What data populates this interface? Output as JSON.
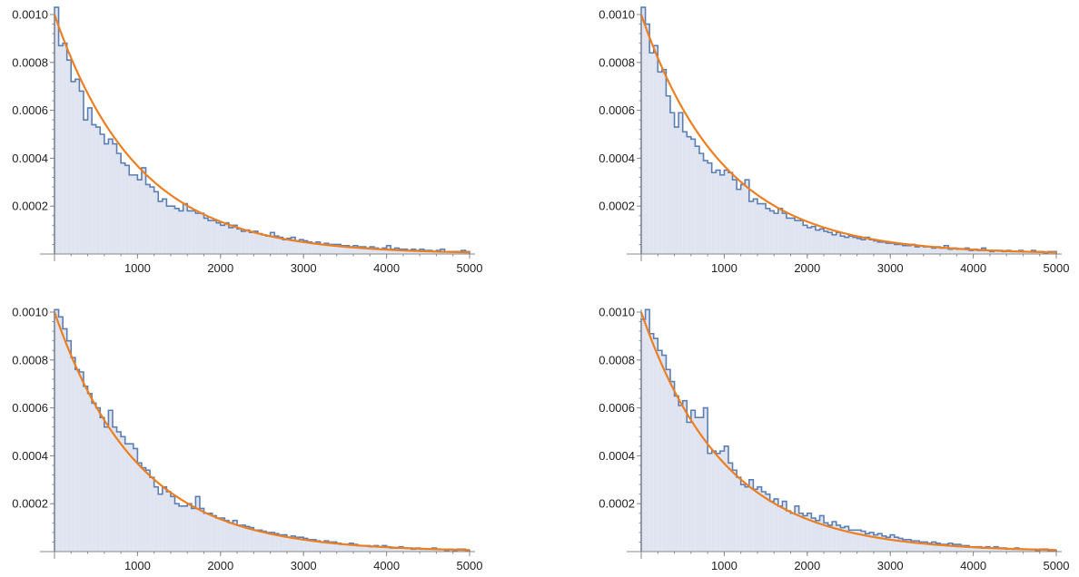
{
  "colors": {
    "histogram_fill": "#dfe4f0",
    "histogram_stroke": "#5b7fb5",
    "fit_curve": "#ec7f22",
    "axis": "#888888"
  },
  "chart_data": [
    {
      "type": "histogram",
      "xlim": [
        0,
        5000
      ],
      "ylim": [
        0,
        0.00104
      ],
      "x_ticks": [
        1000,
        2000,
        3000,
        4000,
        5000
      ],
      "y_ticks": [
        0.0002,
        0.0004,
        0.0006,
        0.0008,
        0.001
      ],
      "x_tick_labels": [
        "1000",
        "2000",
        "3000",
        "4000",
        "5000"
      ],
      "y_tick_labels": [
        "0.0002",
        "0.0004",
        "0.0006",
        "0.0008",
        "0.0010"
      ],
      "bin_width": 50,
      "fit_curve": {
        "type": "exponential",
        "rate": 0.001
      },
      "values": [
        0.00103,
        0.00087,
        0.00088,
        0.00081,
        0.00072,
        0.00073,
        0.00068,
        0.00056,
        0.00061,
        0.00054,
        0.00053,
        0.0005,
        0.00046,
        0.00048,
        0.00046,
        0.00042,
        0.00038,
        0.00037,
        0.00033,
        0.00033,
        0.00031,
        0.00036,
        0.00029,
        0.00028,
        0.00026,
        0.00022,
        0.00023,
        0.0002,
        0.0002,
        0.00019,
        0.00018,
        0.00021,
        0.00018,
        0.00018,
        0.00017,
        0.00017,
        0.00015,
        0.00014,
        0.00014,
        0.00013,
        0.00012,
        0.00013,
        0.00011,
        0.00012,
        0.000105,
        9.5e-05,
        0.0001,
        9e-05,
        9.5e-05,
        8.5e-05,
        8e-05,
        7.5e-05,
        9e-05,
        7.5e-05,
        7e-05,
        6e-05,
        6.5e-05,
        7e-05,
        5.5e-05,
        6e-05,
        5.5e-05,
        5e-05,
        4.5e-05,
        5e-05,
        4e-05,
        4.5e-05,
        4e-05,
        4e-05,
        4e-05,
        3.5e-05,
        3.5e-05,
        3e-05,
        3.5e-05,
        3e-05,
        3e-05,
        2.5e-05,
        3e-05,
        2.5e-05,
        2e-05,
        2.5e-05,
        3.5e-05,
        2e-05,
        2.5e-05,
        2e-05,
        2e-05,
        1.5e-05,
        2e-05,
        1.5e-05,
        2e-05,
        1.5e-05,
        1.5e-05,
        1e-05,
        1.5e-05,
        2e-05,
        1e-05,
        1e-05,
        1e-05,
        1e-05,
        1.5e-05,
        1e-05
      ]
    },
    {
      "type": "histogram",
      "xlim": [
        0,
        5000
      ],
      "ylim": [
        0,
        0.00104
      ],
      "x_ticks": [
        1000,
        2000,
        3000,
        4000,
        5000
      ],
      "y_ticks": [
        0.0002,
        0.0004,
        0.0006,
        0.0008,
        0.001
      ],
      "x_tick_labels": [
        "1000",
        "2000",
        "3000",
        "4000",
        "5000"
      ],
      "y_tick_labels": [
        "0.0002",
        "0.0004",
        "0.0006",
        "0.0008",
        "0.0010"
      ],
      "bin_width": 50,
      "fit_curve": {
        "type": "exponential",
        "rate": 0.001
      },
      "values": [
        0.00103,
        0.00096,
        0.00084,
        0.00087,
        0.00076,
        0.00077,
        0.00066,
        0.00059,
        0.00053,
        0.00059,
        0.00051,
        0.00049,
        0.00048,
        0.00045,
        0.00042,
        0.00039,
        0.00038,
        0.00034,
        0.00035,
        0.00033,
        0.00035,
        0.00034,
        0.00031,
        0.00027,
        0.00029,
        0.00031,
        0.00022,
        0.00023,
        0.00021,
        0.00021,
        0.00019,
        0.00018,
        0.00017,
        0.00019,
        0.00017,
        0.00015,
        0.00015,
        0.00014,
        0.00014,
        0.00012,
        0.00011,
        0.000115,
        0.0001,
        0.000105,
        9.5e-05,
        9e-05,
        8e-05,
        9e-05,
        7.5e-05,
        7e-05,
        7.5e-05,
        7e-05,
        6.5e-05,
        6e-05,
        7e-05,
        6e-05,
        5.5e-05,
        5e-05,
        5e-05,
        4.5e-05,
        4.5e-05,
        4e-05,
        4e-05,
        3.5e-05,
        3.5e-05,
        4e-05,
        3e-05,
        3.5e-05,
        3e-05,
        3e-05,
        2.5e-05,
        3e-05,
        2.5e-05,
        3.5e-05,
        2e-05,
        2.5e-05,
        2e-05,
        2e-05,
        2.5e-05,
        1.5e-05,
        2e-05,
        1.5e-05,
        2.5e-05,
        1.5e-05,
        1e-05,
        1.5e-05,
        1.5e-05,
        1e-05,
        1.5e-05,
        1e-05,
        1e-05,
        1.5e-05,
        1e-05,
        1e-05,
        1.5e-05,
        1e-05,
        1e-05,
        5e-06,
        1e-05,
        1e-05
      ]
    },
    {
      "type": "histogram",
      "xlim": [
        0,
        5000
      ],
      "ylim": [
        0,
        0.00104
      ],
      "x_ticks": [
        1000,
        2000,
        3000,
        4000,
        5000
      ],
      "y_ticks": [
        0.0002,
        0.0004,
        0.0006,
        0.0008,
        0.001
      ],
      "x_tick_labels": [
        "1000",
        "2000",
        "3000",
        "4000",
        "5000"
      ],
      "y_tick_labels": [
        "0.0002",
        "0.0004",
        "0.0006",
        "0.0008",
        "0.0010"
      ],
      "bin_width": 50,
      "fit_curve": {
        "type": "exponential",
        "rate": 0.001
      },
      "values": [
        0.00101,
        0.00098,
        0.00093,
        0.00088,
        0.00081,
        0.00076,
        0.00075,
        0.00069,
        0.00066,
        0.00062,
        0.0006,
        0.00056,
        0.00052,
        0.00059,
        0.00052,
        0.0005,
        0.00048,
        0.00045,
        0.00045,
        0.00043,
        0.00037,
        0.00035,
        0.00034,
        0.00031,
        0.00027,
        0.00024,
        0.00027,
        0.00025,
        0.00023,
        0.0002,
        0.00019,
        0.00019,
        0.0002,
        0.00018,
        0.00023,
        0.00018,
        0.00016,
        0.00016,
        0.00015,
        0.00014,
        0.00014,
        0.00013,
        0.00012,
        0.00013,
        0.00011,
        0.00011,
        0.000105,
        0.0001,
        9e-05,
        9e-05,
        8.5e-05,
        8e-05,
        8e-05,
        7.5e-05,
        7e-05,
        7e-05,
        6e-05,
        6.5e-05,
        6e-05,
        6e-05,
        5.5e-05,
        5e-05,
        5e-05,
        4.5e-05,
        4e-05,
        4.5e-05,
        4e-05,
        4e-05,
        3.5e-05,
        3e-05,
        3e-05,
        3.5e-05,
        3e-05,
        2.5e-05,
        2.5e-05,
        2.5e-05,
        2e-05,
        2.5e-05,
        2e-05,
        2.5e-05,
        2e-05,
        1.5e-05,
        1.5e-05,
        2e-05,
        1.5e-05,
        1.5e-05,
        1e-05,
        1.5e-05,
        1e-05,
        1e-05,
        1e-05,
        1.5e-05,
        1e-05,
        1e-05,
        5e-06,
        1e-05,
        5e-06,
        1e-05,
        1e-05,
        5e-06
      ]
    },
    {
      "type": "histogram",
      "xlim": [
        0,
        5000
      ],
      "ylim": [
        0,
        0.00104
      ],
      "x_ticks": [
        1000,
        2000,
        3000,
        4000,
        5000
      ],
      "y_ticks": [
        0.0002,
        0.0004,
        0.0006,
        0.0008,
        0.001
      ],
      "x_tick_labels": [
        "1000",
        "2000",
        "3000",
        "4000",
        "5000"
      ],
      "y_tick_labels": [
        "0.0002",
        "0.0004",
        "0.0006",
        "0.0008",
        "0.0010"
      ],
      "bin_width": 50,
      "fit_curve": {
        "type": "exponential",
        "rate": 0.001
      },
      "values": [
        0.00097,
        0.00101,
        0.00091,
        0.00089,
        0.00084,
        0.00082,
        0.00076,
        0.00071,
        0.00065,
        0.00061,
        0.00063,
        0.00054,
        0.00059,
        0.00056,
        0.00056,
        0.0006,
        0.00041,
        0.00042,
        0.00041,
        0.00042,
        0.00044,
        0.00037,
        0.00034,
        0.00031,
        0.00028,
        0.00027,
        0.0003,
        0.00026,
        0.00027,
        0.00025,
        0.00024,
        0.00021,
        0.00022,
        0.00019,
        0.00021,
        0.00017,
        0.00016,
        0.00019,
        0.00016,
        0.00015,
        0.00016,
        0.00014,
        0.00013,
        0.00015,
        0.00012,
        0.00011,
        0.000125,
        0.00011,
        0.0001,
        0.000105,
        9e-05,
        9e-05,
        9e-05,
        8.5e-05,
        7.5e-05,
        8e-05,
        7e-05,
        7.5e-05,
        6.5e-05,
        6e-05,
        7e-05,
        6e-05,
        5.5e-05,
        5e-05,
        5e-05,
        4.5e-05,
        4.5e-05,
        4e-05,
        4e-05,
        3.5e-05,
        4e-05,
        3.5e-05,
        3e-05,
        3e-05,
        3.5e-05,
        3e-05,
        3e-05,
        2.5e-05,
        2.5e-05,
        2e-05,
        2e-05,
        2e-05,
        1.5e-05,
        2e-05,
        1.5e-05,
        2e-05,
        1.5e-05,
        1.5e-05,
        1e-05,
        1e-05,
        1.5e-05,
        1e-05,
        1e-05,
        1e-05,
        1e-05,
        5e-06,
        1e-05,
        1e-05,
        5e-06,
        5e-06
      ]
    }
  ]
}
